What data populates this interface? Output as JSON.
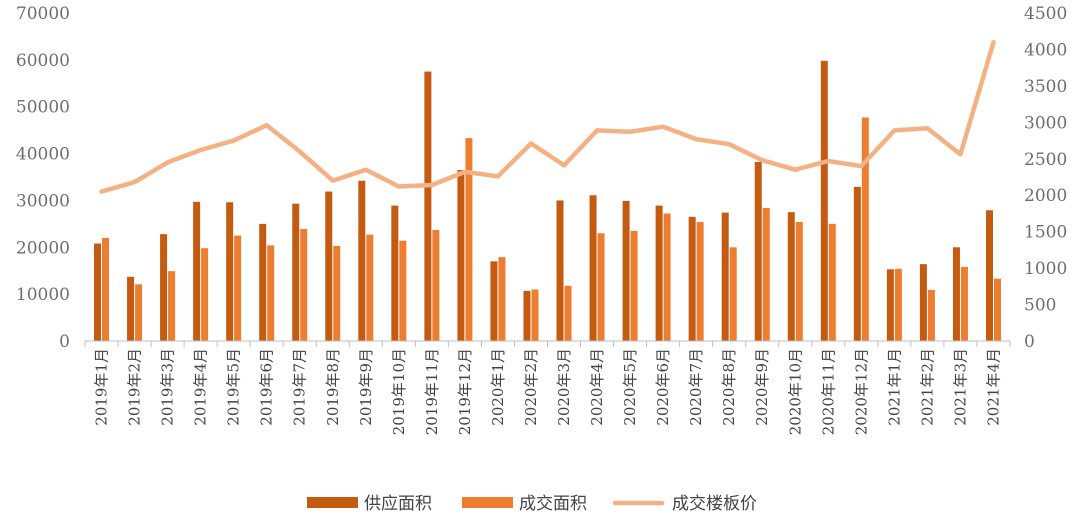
{
  "chart_data": {
    "type": "bar",
    "categories": [
      "2019年1月",
      "2019年2月",
      "2019年3月",
      "2019年4月",
      "2019年5月",
      "2019年6月",
      "2019年7月",
      "2019年8月",
      "2019年9月",
      "2019年10月",
      "2019年11月",
      "2019年12月",
      "2020年1月",
      "2020年2月",
      "2020年3月",
      "2020年4月",
      "2020年5月",
      "2020年6月",
      "2020年7月",
      "2020年8月",
      "2020年9月",
      "2020年10月",
      "2020年11月",
      "2020年12月",
      "2021年1月",
      "2021年2月",
      "2021年3月",
      "2021年4月"
    ],
    "series": [
      {
        "name": "供应面积",
        "type": "bar",
        "axis": "left",
        "color": "#C55A11",
        "values": [
          20800,
          13700,
          22800,
          29700,
          29600,
          25000,
          29300,
          31900,
          34200,
          28900,
          57500,
          36500,
          17000,
          10700,
          30000,
          31100,
          29900,
          28900,
          26500,
          27400,
          38200,
          27500,
          59800,
          32900,
          15300,
          16400,
          20000,
          27900
        ]
      },
      {
        "name": "成交面积",
        "type": "bar",
        "axis": "left",
        "color": "#ED7D31",
        "values": [
          22000,
          12100,
          14900,
          19800,
          22500,
          20400,
          23900,
          20300,
          22700,
          21400,
          23700,
          43300,
          17900,
          11000,
          11800,
          23000,
          23500,
          27200,
          25400,
          20000,
          28400,
          25400,
          25000,
          47700,
          15400,
          10900,
          15800,
          13300
        ]
      },
      {
        "name": "成交楼板价",
        "type": "line",
        "axis": "right",
        "color": "#F4B183",
        "values": [
          2050,
          2180,
          2450,
          2620,
          2750,
          2960,
          2600,
          2200,
          2350,
          2120,
          2140,
          2320,
          2260,
          2710,
          2410,
          2890,
          2870,
          2940,
          2770,
          2700,
          2480,
          2350,
          2470,
          2400,
          2890,
          2920,
          2560,
          4100
        ]
      }
    ],
    "yleft": {
      "lim": [
        0,
        70000
      ],
      "ticks": [
        "0",
        "10000",
        "20000",
        "30000",
        "40000",
        "50000",
        "60000",
        "70000"
      ]
    },
    "yright": {
      "lim": [
        0,
        4500
      ],
      "ticks": [
        "0",
        "500",
        "1000",
        "1500",
        "2000",
        "2500",
        "3000",
        "3500",
        "4000",
        "4500"
      ]
    },
    "grid": false,
    "legend": "bottom-center"
  }
}
